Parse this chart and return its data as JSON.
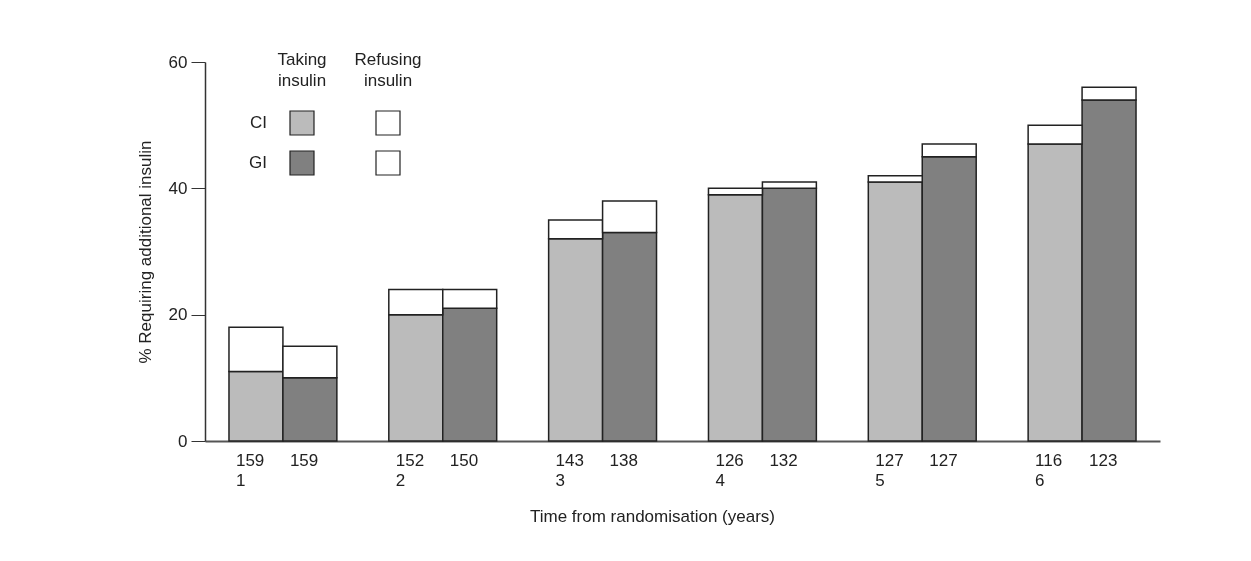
{
  "chart_data": {
    "type": "bar",
    "stacked": true,
    "xlabel": "Time from randomisation (years)",
    "ylabel": "% Requiring additional insulin",
    "categories": [
      "159\n1",
      "159",
      "152\n2",
      "150",
      "143\n3",
      "138",
      "126\n4",
      "132",
      "127\n5",
      "127",
      "116\n6",
      "123"
    ],
    "series": [
      {
        "name": "CI",
        "color": "#bbbbbb",
        "values": [
          11,
          null,
          20,
          null,
          32,
          null,
          39,
          null,
          41,
          null,
          47,
          null
        ]
      },
      {
        "name": "GI",
        "color": "#808080",
        "values": [
          null,
          10,
          null,
          21,
          null,
          33,
          null,
          40,
          null,
          45,
          null,
          54
        ]
      },
      {
        "color": "#ffffff",
        "values": [
          7,
          null,
          4,
          null,
          3,
          null,
          1,
          null,
          1,
          null,
          3,
          null
        ]
      },
      {
        "color": "#ffffff",
        "values": [
          null,
          5,
          null,
          3,
          null,
          5,
          null,
          1,
          null,
          2,
          null,
          2
        ]
      }
    ],
    "annotations": [
      "Taking insulin",
      "Refusing insulin"
    ],
    "ylim": [
      0,
      60
    ],
    "yticks": [
      0,
      20,
      40,
      60
    ],
    "grid": false,
    "legend": "top left"
  }
}
